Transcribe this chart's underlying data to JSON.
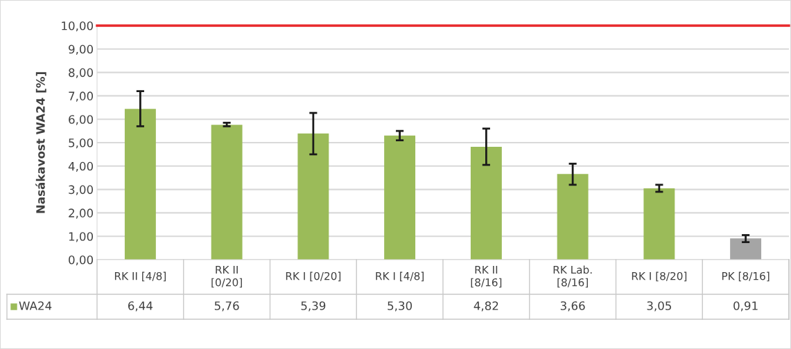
{
  "chart_data": {
    "type": "bar",
    "ylabel": "Nasákavost WA24 [%]",
    "categories": [
      "RK II [4/8]",
      "RK II [0/20]",
      "RK I [0/20]",
      "RK I [4/8]",
      "RK II [8/16]",
      "RK Lab. [8/16]",
      "RK I [8/20]",
      "PK [8/16]"
    ],
    "series": [
      {
        "name": "WA24",
        "color": "#9bbb59",
        "colors": [
          "#9bbb59",
          "#9bbb59",
          "#9bbb59",
          "#9bbb59",
          "#9bbb59",
          "#9bbb59",
          "#9bbb59",
          "#a5a5a5"
        ],
        "values": [
          6.44,
          5.76,
          5.39,
          5.3,
          4.82,
          3.66,
          3.05,
          0.91
        ],
        "value_labels": [
          "6,44",
          "5,76",
          "5,39",
          "5,30",
          "4,82",
          "3,66",
          "3,05",
          "0,91"
        ],
        "errors": [
          [
            5.7,
            7.2
          ],
          [
            5.7,
            5.85
          ],
          [
            4.5,
            6.27
          ],
          [
            5.1,
            5.5
          ],
          [
            4.05,
            5.6
          ],
          [
            3.2,
            4.1
          ],
          [
            2.9,
            3.2
          ],
          [
            0.75,
            1.05
          ]
        ]
      }
    ],
    "ylim": [
      0,
      10
    ],
    "yticks": [
      {
        "value": 0,
        "label": "0,00"
      },
      {
        "value": 1,
        "label": "1,00"
      },
      {
        "value": 2,
        "label": "2,00"
      },
      {
        "value": 3,
        "label": "3,00"
      },
      {
        "value": 4,
        "label": "4,00"
      },
      {
        "value": 5,
        "label": "5,00"
      },
      {
        "value": 6,
        "label": "6,00"
      },
      {
        "value": 7,
        "label": "7,00"
      },
      {
        "value": 8,
        "label": "8,00"
      },
      {
        "value": 9,
        "label": "9,00"
      },
      {
        "value": 10,
        "label": "10,00"
      }
    ],
    "grid": "y",
    "ref_lines": [
      {
        "axis": "y",
        "value": 10,
        "color": "#e8282b"
      }
    ]
  }
}
